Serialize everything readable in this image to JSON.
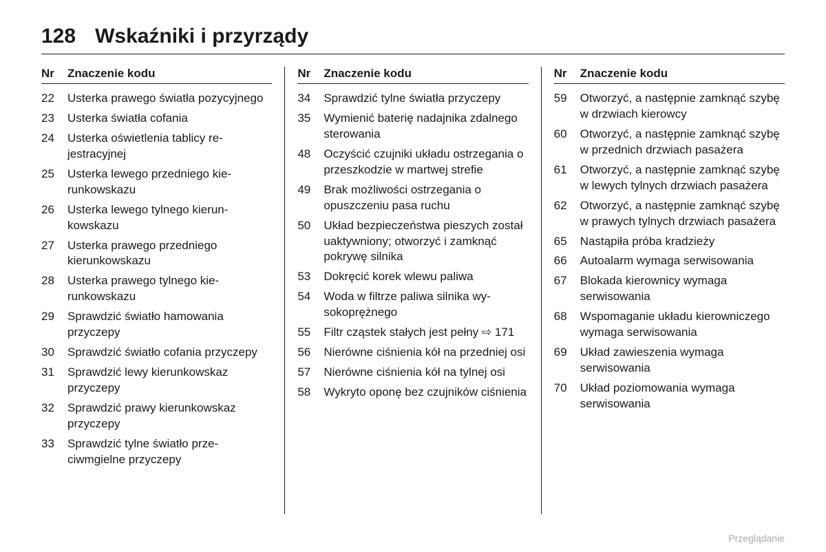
{
  "page_number": "128",
  "chapter_title": "Wskaźniki i przyrządy",
  "table_header": {
    "nr": "Nr",
    "meaning": "Znaczenie kodu"
  },
  "footer": "Przeglądanie",
  "columns": [
    {
      "rows": [
        {
          "nr": "22",
          "zn": "Usterka prawego światła pozycyjnego"
        },
        {
          "nr": "23",
          "zn": "Usterka światła cofania"
        },
        {
          "nr": "24",
          "zn": "Usterka oświetlenia tablicy re­jestracyjnej"
        },
        {
          "nr": "25",
          "zn": "Usterka lewego przedniego kie­runkowskazu"
        },
        {
          "nr": "26",
          "zn": "Usterka lewego tylnego kierun­kowskazu"
        },
        {
          "nr": "27",
          "zn": "Usterka prawego przedniego kierunkowskazu"
        },
        {
          "nr": "28",
          "zn": "Usterka prawego tylnego kie­runkowskazu"
        },
        {
          "nr": "29",
          "zn": "Sprawdzić światło hamowania przyczepy"
        },
        {
          "nr": "30",
          "zn": "Sprawdzić światło cofania przyczepy"
        },
        {
          "nr": "31",
          "zn": "Sprawdzić lewy kierunkowskaz przyczepy"
        },
        {
          "nr": "32",
          "zn": "Sprawdzić prawy kierunkowskaz przyczepy"
        },
        {
          "nr": "33",
          "zn": "Sprawdzić tylne światło prze­ciwmgielne przyczepy"
        }
      ]
    },
    {
      "rows": [
        {
          "nr": "34",
          "zn": "Sprawdzić tylne światła przyczepy"
        },
        {
          "nr": "35",
          "zn": "Wymienić baterię nadajnika zdalnego sterowania"
        },
        {
          "nr": "48",
          "zn": "Oczyścić czujniki układu ostrzegania o przeszkodzie w martwej strefie"
        },
        {
          "nr": "49",
          "zn": "Brak możliwości ostrzegania o opuszczeniu pasa ruchu"
        },
        {
          "nr": "50",
          "zn": "Układ bezpieczeństwa pieszych został uaktywniony; otworzyć i zamknąć pokrywę silnika"
        },
        {
          "nr": "53",
          "zn": "Dokręcić korek wlewu paliwa"
        },
        {
          "nr": "54",
          "zn": "Woda w filtrze paliwa silnika wy­sokoprężnego"
        },
        {
          "nr": "55",
          "zn": "Filtr cząstek stałych jest pełny ⇨ 171"
        },
        {
          "nr": "56",
          "zn": "Nierówne ciśnienia kół na przedniej osi"
        },
        {
          "nr": "57",
          "zn": "Nierówne ciśnienia kół na tylnej osi"
        },
        {
          "nr": "58",
          "zn": "Wykryto oponę bez czujników ciśnienia"
        }
      ]
    },
    {
      "rows": [
        {
          "nr": "59",
          "zn": "Otworzyć, a następnie zamknąć szybę w drzwiach kierowcy"
        },
        {
          "nr": "60",
          "zn": "Otworzyć, a następnie zamknąć szybę w przednich drzwiach pasażera"
        },
        {
          "nr": "61",
          "zn": "Otworzyć, a następnie zamknąć szybę w lewych tylnych drzwiach pasażera"
        },
        {
          "nr": "62",
          "zn": "Otworzyć, a następnie zamknąć szybę w prawych tylnych drzwiach pasażera"
        },
        {
          "nr": "65",
          "zn": "Nastąpiła próba kradzieży"
        },
        {
          "nr": "66",
          "zn": "Autoalarm wymaga serwisowania"
        },
        {
          "nr": "67",
          "zn": "Blokada kierownicy wymaga serwisowania"
        },
        {
          "nr": "68",
          "zn": "Wspomaganie układu kierowniczego wymaga serwisowania"
        },
        {
          "nr": "69",
          "zn": "Układ zawieszenia wymaga serwisowania"
        },
        {
          "nr": "70",
          "zn": "Układ poziomowania wymaga serwisowania"
        }
      ]
    }
  ]
}
